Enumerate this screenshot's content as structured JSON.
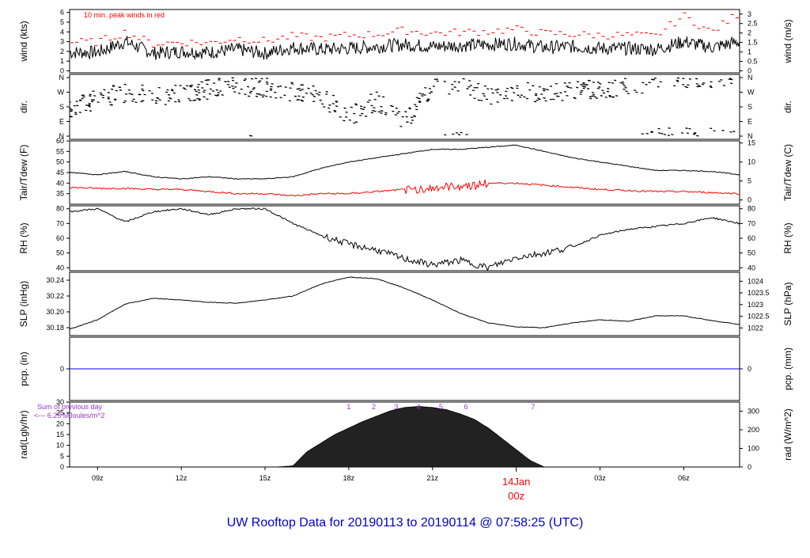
{
  "title": "UW Rooftop Data for 20190113  to  20190114 @ 07:58:25  (UTC)",
  "colors": {
    "series": "#000000",
    "peak": "#ff0000",
    "tdew": "#ff0000",
    "pcp": "#0000ff",
    "note": "#9933cc",
    "title": "#0000cc",
    "date": "#ff0000"
  },
  "chart_data": [
    {
      "type": "line",
      "name": "wind",
      "ylabel": "wind (kts)",
      "ylabel_right": "wind (m/s)",
      "ylim": [
        -0.2,
        6.3
      ],
      "yticks": [
        0,
        1,
        2,
        3,
        4,
        5,
        6
      ],
      "yticks_right": [
        "0",
        "0.5",
        "1",
        "1.5",
        "2",
        "2.5",
        "3"
      ],
      "annotation": "10 min. peak winds in red",
      "x": [
        0,
        1,
        2,
        3,
        4,
        5,
        6,
        7,
        8,
        9,
        10,
        11,
        12,
        13,
        14,
        15,
        16,
        17,
        18,
        19,
        20,
        21,
        22,
        23,
        24
      ],
      "series": [
        {
          "values": [
            1.9,
            1.9,
            3.0,
            1.8,
            2.0,
            1.9,
            2.2,
            1.8,
            2.4,
            2.2,
            2.3,
            2.5,
            2.7,
            2.5,
            2.6,
            2.7,
            2.8,
            2.4,
            2.5,
            2.3,
            2.3,
            2.2,
            3.0,
            2.4,
            3.0
          ]
        },
        {
          "values": [
            2.8,
            2.8,
            3.8,
            2.6,
            2.8,
            2.7,
            3.2,
            2.9,
            3.4,
            3.2,
            3.5,
            3.6,
            4.0,
            3.7,
            3.8,
            3.9,
            4.1,
            3.7,
            3.6,
            3.5,
            3.5,
            3.4,
            5.5,
            3.8,
            5.8
          ]
        }
      ]
    },
    {
      "type": "scatter",
      "name": "dir",
      "ylabel": "dir.",
      "ylabel_right": "dir.",
      "ylim": [
        0,
        360
      ],
      "yticks_right": [
        "N",
        "W",
        "S",
        "E",
        "N"
      ],
      "yticks": [
        "N",
        "W",
        "S",
        "E",
        "N"
      ],
      "x": [
        0,
        1,
        2,
        3,
        4,
        5,
        6,
        7,
        8,
        9,
        10,
        11,
        12,
        13,
        14,
        15,
        16,
        17,
        18,
        19,
        20,
        21,
        22,
        23,
        24
      ],
      "values": [
        160,
        230,
        270,
        250,
        260,
        290,
        310,
        300,
        270,
        250,
        120,
        220,
        90,
        300,
        330,
        250,
        270,
        270,
        280,
        290,
        300,
        350,
        355,
        350,
        350
      ]
    },
    {
      "type": "line",
      "name": "temp",
      "ylabel": "Tair/Tdew (F)",
      "ylabel_right": "Tair/Tdew (C)",
      "ylim": [
        30,
        60
      ],
      "yticks": [
        35,
        40,
        45,
        50,
        55,
        60
      ],
      "yticks_right": [
        "0",
        "5",
        "10",
        "15"
      ],
      "x": [
        0,
        1,
        2,
        3,
        4,
        5,
        6,
        7,
        8,
        9,
        10,
        11,
        12,
        13,
        14,
        15,
        16,
        17,
        18,
        19,
        20,
        21,
        22,
        23,
        24
      ],
      "series": [
        {
          "values": [
            45,
            44,
            45.5,
            43,
            42,
            43,
            42,
            42,
            43,
            47,
            50,
            52,
            54,
            56,
            56,
            57,
            58,
            55,
            52,
            50,
            48,
            46,
            46,
            45.5,
            44
          ]
        },
        {
          "values": [
            38,
            37.5,
            37.5,
            37,
            37,
            36,
            35,
            35,
            34,
            35,
            35,
            36,
            37,
            38,
            39,
            40,
            40,
            39,
            38,
            37,
            36.5,
            36,
            36,
            35.5,
            35
          ]
        }
      ]
    },
    {
      "type": "line",
      "name": "rh",
      "ylabel": "RH (%)",
      "ylabel_right": "RH (%)",
      "ylim": [
        38,
        82
      ],
      "yticks": [
        40,
        50,
        60,
        70,
        80
      ],
      "yticks_right": [
        "40",
        "50",
        "60",
        "70",
        "80"
      ],
      "x": [
        0,
        1,
        2,
        3,
        4,
        5,
        6,
        7,
        8,
        9,
        10,
        11,
        12,
        13,
        14,
        15,
        16,
        17,
        18,
        19,
        20,
        21,
        22,
        23,
        24
      ],
      "values": [
        78,
        80,
        71,
        78,
        80,
        76,
        80,
        80,
        70,
        62,
        56,
        52,
        46,
        42,
        45,
        40,
        47,
        50,
        54,
        62,
        66,
        68,
        70,
        74,
        70
      ]
    },
    {
      "type": "line",
      "name": "slp",
      "ylabel": "SLP (inHg)",
      "ylabel_right": "SLP (hPa)",
      "ylim": [
        30.17,
        30.25
      ],
      "yticks": [
        "30.18",
        "30.20",
        "30.22",
        "30.24"
      ],
      "yticks_right": [
        "1022",
        "1022.5",
        "1023",
        "1023.5",
        "1024"
      ],
      "x": [
        0,
        1,
        2,
        3,
        4,
        5,
        6,
        7,
        8,
        9,
        10,
        11,
        12,
        13,
        14,
        15,
        16,
        17,
        18,
        19,
        20,
        21,
        22,
        23,
        24
      ],
      "values": [
        30.178,
        30.19,
        30.21,
        30.217,
        30.215,
        30.212,
        30.211,
        30.215,
        30.22,
        30.235,
        30.244,
        30.242,
        30.23,
        30.215,
        30.198,
        30.186,
        30.181,
        30.18,
        30.186,
        30.19,
        30.188,
        30.195,
        30.195,
        30.189,
        30.184
      ]
    },
    {
      "type": "line",
      "name": "pcp",
      "ylabel": "pcp. (in)",
      "ylabel_right": "pcp. (mm)",
      "ylim": [
        -1,
        1
      ],
      "yticks": [
        "0"
      ],
      "yticks_right": [
        "0"
      ],
      "x": [
        0,
        24
      ],
      "values": [
        0,
        0
      ]
    },
    {
      "type": "area",
      "name": "rad",
      "ylabel": "rad(Lgly/hr)",
      "ylabel_right": "rad (W/m^2)",
      "ylim": [
        0,
        30
      ],
      "yticks": [
        0,
        5,
        10,
        15,
        20,
        25,
        30
      ],
      "yticks_right": [
        "0",
        "100",
        "200",
        "300"
      ],
      "note_line1": "Sum of previous day",
      "note_line2": "<--- 6.25 MJoules/m^2",
      "hour_marks": [
        "1",
        "2",
        "3",
        "4",
        "5",
        "6",
        "7"
      ],
      "x": [
        7.4,
        8,
        8.5,
        9,
        9.5,
        10,
        10.5,
        11,
        11.5,
        12,
        12.5,
        13,
        13.5,
        14,
        14.5,
        15,
        15.5,
        16,
        16.5,
        17
      ],
      "values": [
        0,
        0.5,
        7,
        11,
        15,
        18,
        21,
        23.5,
        26,
        27.5,
        28,
        27.5,
        26.5,
        24.5,
        22,
        18,
        13,
        8,
        3,
        0
      ]
    }
  ],
  "xaxis": {
    "range": [
      0,
      24
    ],
    "ticks": [
      {
        "x": 1,
        "label": "09z"
      },
      {
        "x": 4,
        "label": "12z"
      },
      {
        "x": 7,
        "label": "15z"
      },
      {
        "x": 10,
        "label": "18z"
      },
      {
        "x": 13,
        "label": "21z"
      },
      {
        "x": 19,
        "label": "03z"
      },
      {
        "x": 22,
        "label": "06z"
      }
    ],
    "date_label": "14Jan",
    "date_hour": "00z",
    "date_x": 16
  }
}
